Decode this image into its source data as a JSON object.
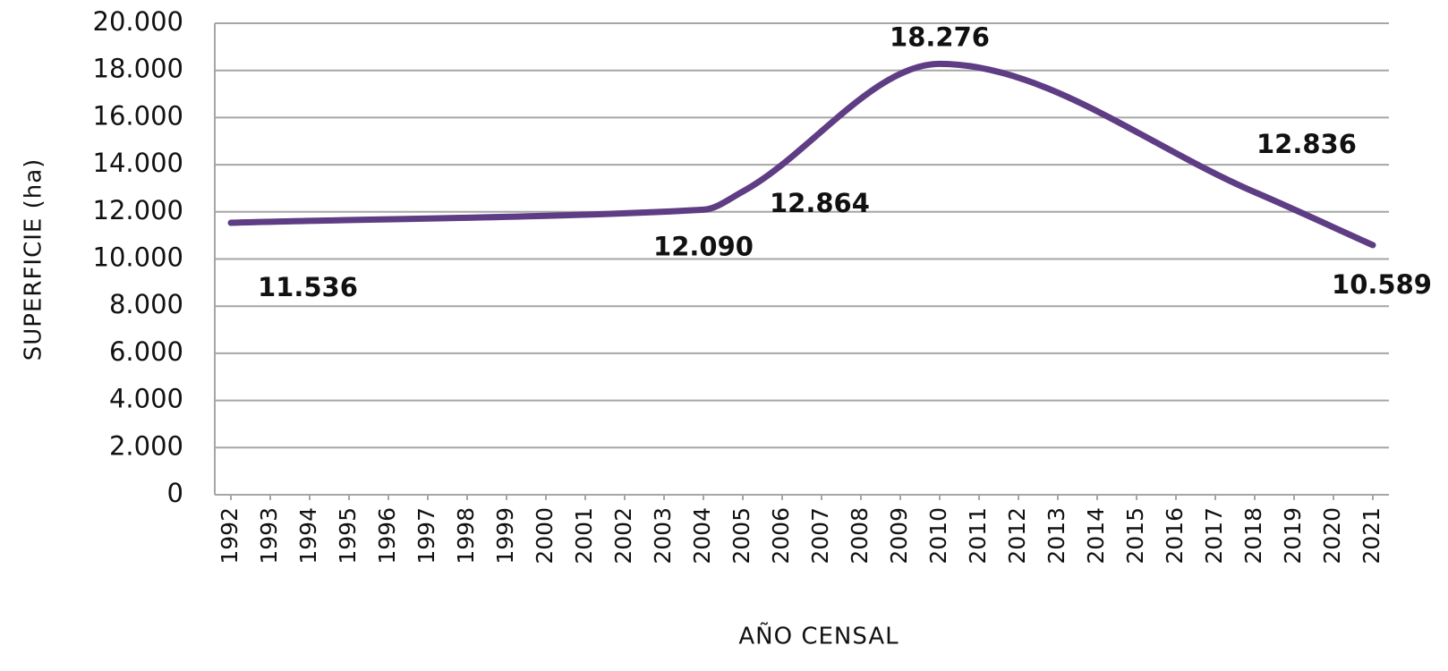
{
  "chart_data": {
    "type": "line",
    "x_label": "AÑO CENSAL",
    "y_label": "SUPERFICIE (ha)",
    "x": [
      1992,
      2004,
      2005,
      2010,
      2018,
      2021
    ],
    "series": [
      {
        "color": "#5e3d84",
        "values": [
          11536,
          12090,
          12864,
          18276,
          12836,
          10589
        ],
        "value_labels": [
          "11.536",
          "12.090",
          "12.864",
          "18.276",
          "12.836",
          "10.589"
        ]
      }
    ],
    "xlim": [
      1992,
      2021
    ],
    "xticks": [
      1992,
      1993,
      1994,
      1995,
      1996,
      1997,
      1998,
      1999,
      2000,
      2001,
      2002,
      2003,
      2004,
      2005,
      2006,
      2007,
      2008,
      2009,
      2010,
      2011,
      2012,
      2013,
      2014,
      2015,
      2016,
      2017,
      2018,
      2019,
      2020,
      2021
    ],
    "ylim": [
      0,
      20000
    ],
    "yticks": [
      0,
      {
        "value": 2000,
        "label": "2.000"
      },
      {
        "value": 4000,
        "label": "4.000"
      },
      {
        "value": 6000,
        "label": "6.000"
      },
      {
        "value": 8000,
        "label": "8.000"
      },
      {
        "value": 10000,
        "label": "10.000"
      },
      {
        "value": 12000,
        "label": "12.000"
      },
      {
        "value": 14000,
        "label": "14.000"
      },
      {
        "value": 16000,
        "label": "16.000"
      },
      {
        "value": 18000,
        "label": "18.000"
      },
      {
        "value": 20000,
        "label": "20.000"
      }
    ],
    "grid": true
  }
}
